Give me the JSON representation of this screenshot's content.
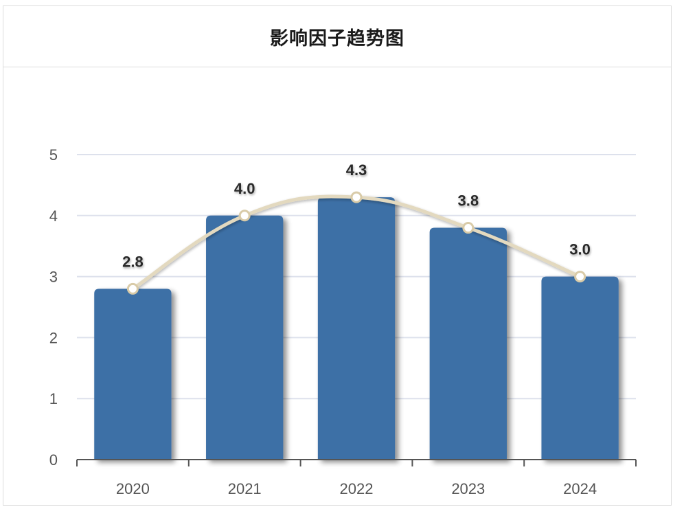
{
  "chart_data": {
    "type": "bar",
    "title": "影响因子趋势图",
    "categories": [
      "2020",
      "2021",
      "2022",
      "2023",
      "2024"
    ],
    "values": [
      2.8,
      4.0,
      4.3,
      3.8,
      3.0
    ],
    "data_labels": [
      "2.8",
      "4.0",
      "4.3",
      "3.8",
      "3.0"
    ],
    "overlay_line": {
      "type": "line",
      "smooth": true,
      "values": [
        2.8,
        4.0,
        4.3,
        3.8,
        3.0
      ]
    },
    "ylim": [
      0,
      5
    ],
    "yticks": [
      "0",
      "1",
      "2",
      "3",
      "4",
      "5"
    ],
    "grid": true,
    "legend": "none",
    "colors": {
      "bar": "#3d6fa6",
      "line": "#e3d9bf",
      "marker_fill": "#ffffff",
      "marker_stroke": "#d9cba8",
      "grid": "#dde1ec"
    }
  }
}
